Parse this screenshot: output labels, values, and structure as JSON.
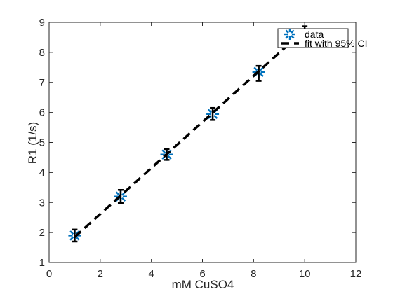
{
  "chart_data": {
    "type": "scatter",
    "xlabel": "mM CuSO4",
    "ylabel": "R1 (1/s)",
    "xlim": [
      0,
      12
    ],
    "ylim": [
      1,
      9
    ],
    "x_ticks": [
      0,
      2,
      4,
      6,
      8,
      10,
      12
    ],
    "y_ticks": [
      1,
      2,
      3,
      4,
      5,
      6,
      7,
      8,
      9
    ],
    "x_tick_labels": [
      "0",
      "2",
      "4",
      "6",
      "8",
      "10",
      "12"
    ],
    "y_tick_labels": [
      "1",
      "2",
      "3",
      "4",
      "5",
      "6",
      "7",
      "8",
      "9"
    ],
    "grid": false,
    "legend_position": "top-right",
    "series": [
      {
        "name": "data",
        "kind": "markers",
        "marker": "asterisk",
        "color": "#0072BD",
        "x": [
          1.0,
          2.8,
          4.6,
          6.4,
          8.2
        ],
        "y": [
          1.9,
          3.2,
          4.6,
          5.95,
          7.35
        ]
      },
      {
        "name": "fit with 95% CI",
        "kind": "dashed-line-with-errorbars",
        "color": "#000000",
        "x": [
          1.0,
          10.0
        ],
        "y": [
          1.85,
          8.75
        ],
        "errorbar_x": [
          1.0,
          2.8,
          4.6,
          6.4,
          8.2,
          10.0
        ],
        "errorbar_y": [
          1.9,
          3.2,
          4.6,
          5.95,
          7.3,
          8.75
        ],
        "errorbar_err": [
          0.2,
          0.22,
          0.18,
          0.2,
          0.25,
          0.12
        ]
      }
    ]
  }
}
